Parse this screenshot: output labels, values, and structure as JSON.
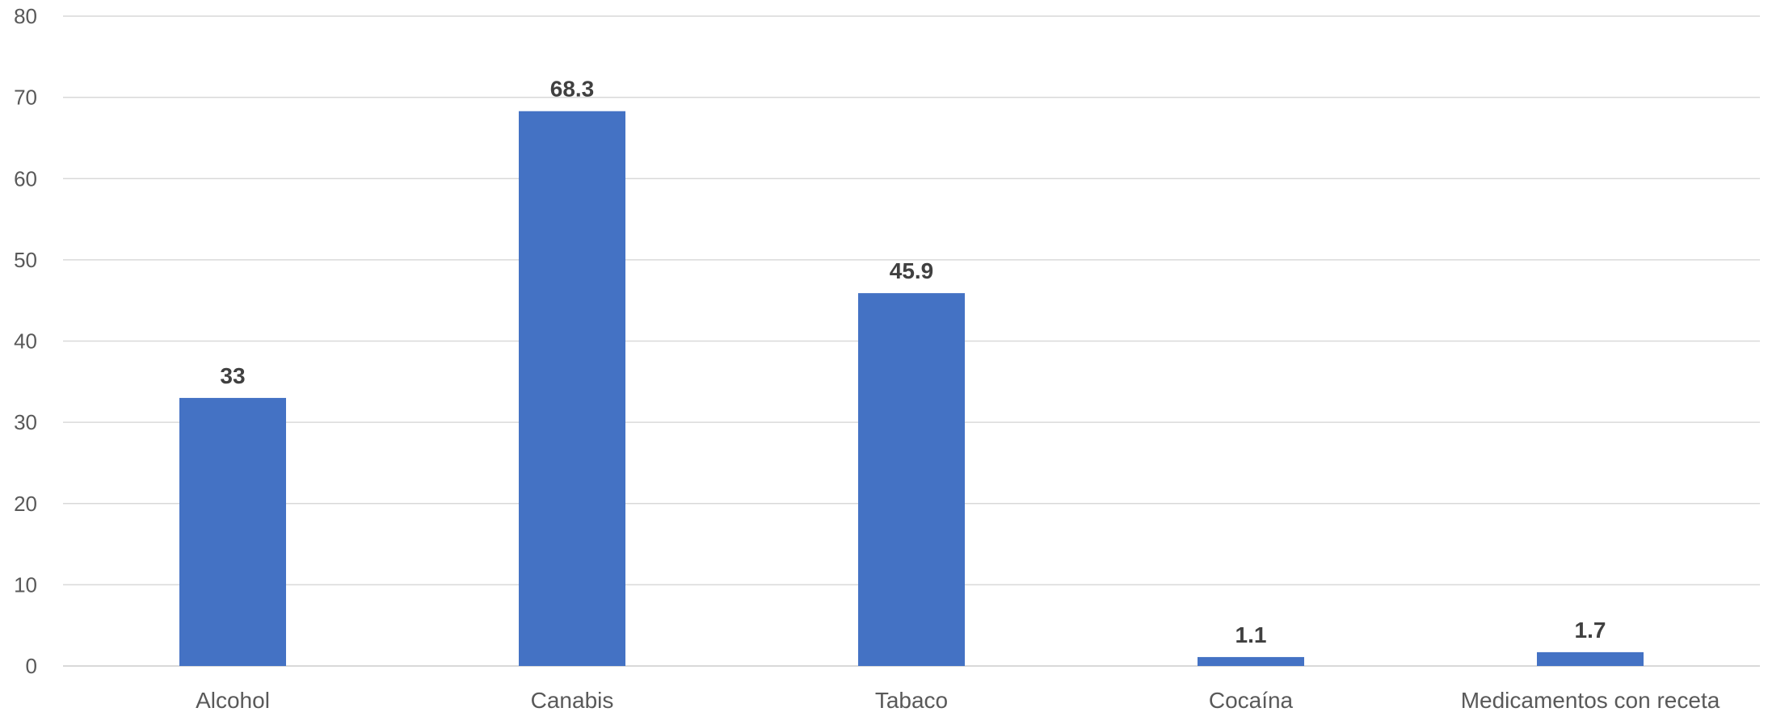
{
  "chart_data": {
    "type": "bar",
    "title": "",
    "xlabel": "",
    "ylabel": "",
    "categories": [
      "Alcohol",
      "Canabis",
      "Tabaco",
      "Cocaína",
      "Medicamentos con receta"
    ],
    "series": [
      {
        "values": [
          33,
          68.3,
          45.9,
          1.1,
          1.7
        ],
        "data_labels": [
          "33",
          "68.3",
          "45.9",
          "1.1",
          "1.7"
        ]
      }
    ],
    "ylim": [
      0,
      80
    ],
    "yticks": [
      0,
      10,
      20,
      30,
      40,
      50,
      60,
      70,
      80
    ],
    "grid": true,
    "legend": "none"
  },
  "colors": {
    "bar": "#4472C4",
    "grid": "#D9D9D9",
    "axis_text": "#595959",
    "data_label": "#404040"
  }
}
